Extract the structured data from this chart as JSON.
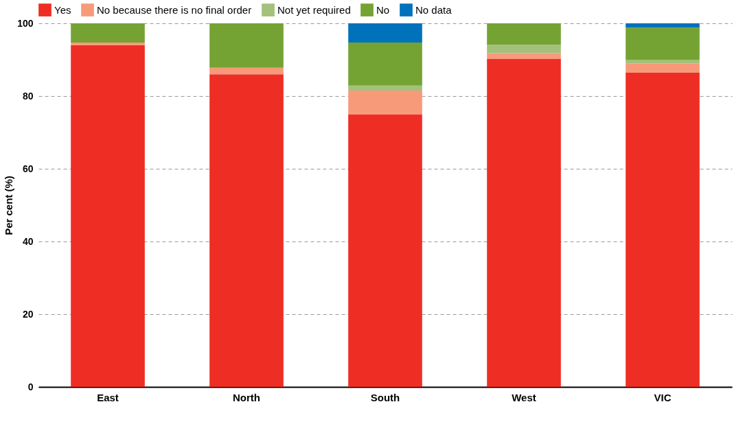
{
  "chart_data": {
    "type": "bar",
    "stacked": true,
    "ylabel": "Per cent (%)",
    "categories": [
      "East",
      "North",
      "South",
      "West",
      "VIC"
    ],
    "series": [
      {
        "name": "Yes",
        "color": "#ee2e24",
        "values": [
          94,
          86,
          75,
          90.3,
          86.4
        ]
      },
      {
        "name": "No because there is no final order",
        "color": "#f79a7a",
        "values": [
          0.7,
          1.8,
          6.5,
          1.5,
          2.6
        ]
      },
      {
        "name": "Not yet required",
        "color": "#a3c17a",
        "values": [
          0,
          0,
          1.4,
          2.3,
          1
        ]
      },
      {
        "name": "No",
        "color": "#74a333",
        "values": [
          5.3,
          12.2,
          11.8,
          5.9,
          8.8
        ]
      },
      {
        "name": "No data",
        "color": "#0072bc",
        "values": [
          0,
          0,
          5.3,
          0,
          1.2
        ]
      }
    ],
    "ylim": [
      0,
      100
    ],
    "yticks": [
      0,
      20,
      40,
      60,
      80,
      100
    ],
    "grid": "y",
    "legend": "top left"
  }
}
